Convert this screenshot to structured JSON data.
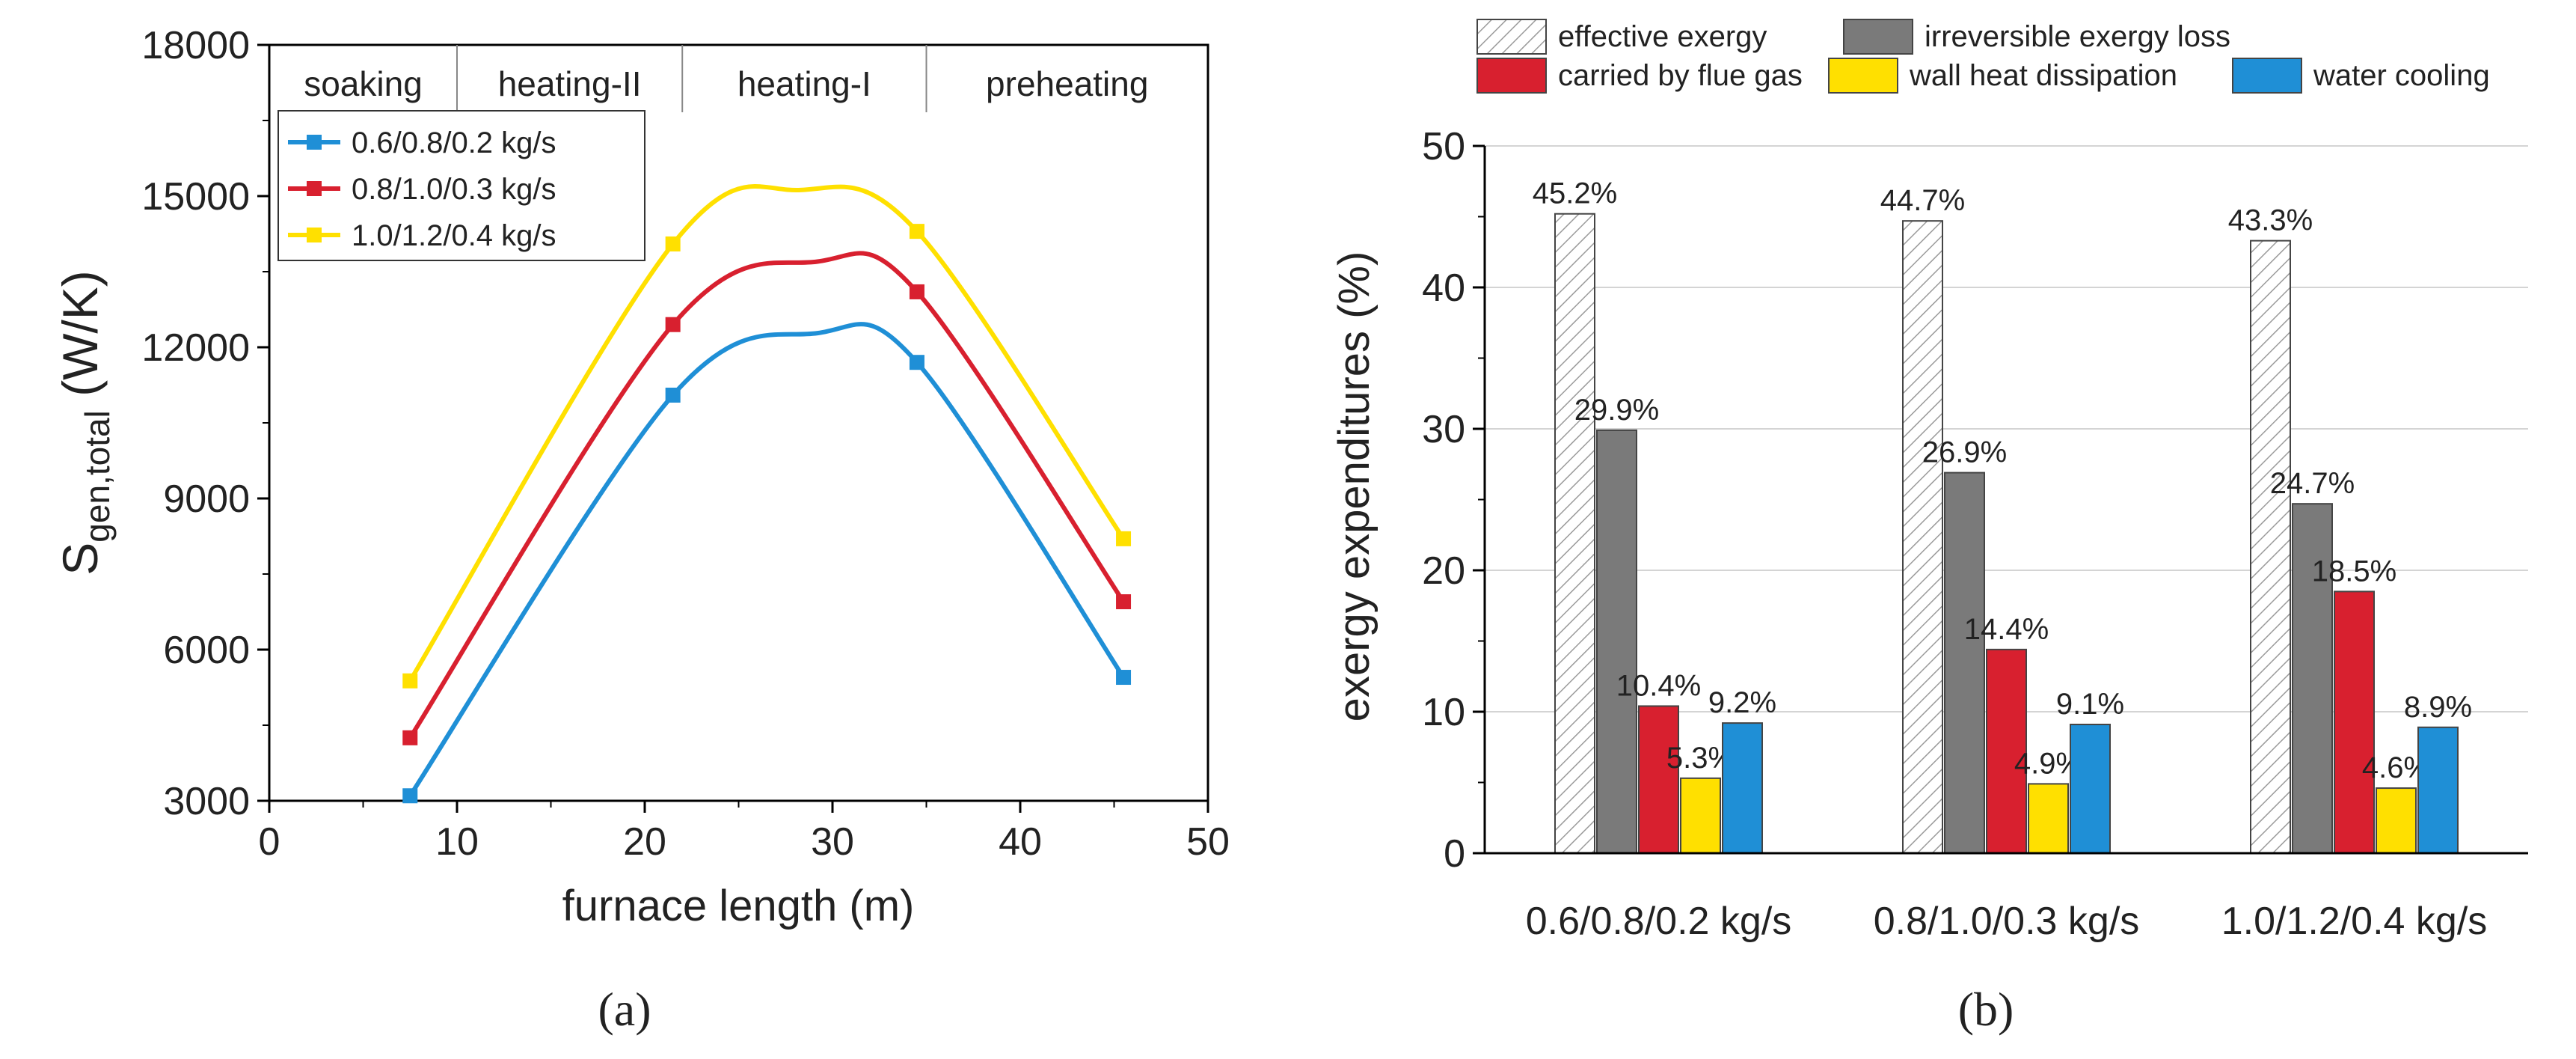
{
  "chart_data": [
    {
      "type": "line",
      "panel": "(a)",
      "xlabel": "furnace length (m)",
      "ylabel_main": "S",
      "ylabel_sub": "gen,total",
      "ylabel_unit": " (W/K)",
      "xlim": [
        0,
        50
      ],
      "ylim": [
        3000,
        18000
      ],
      "xticks": [
        "0",
        "10",
        "20",
        "30",
        "40",
        "50"
      ],
      "yticks": [
        "3000",
        "6000",
        "9000",
        "12000",
        "15000",
        "18000"
      ],
      "regions": [
        {
          "label": "soaking",
          "x_start": 0,
          "x_end": 10
        },
        {
          "label": "heating-II",
          "x_start": 10,
          "x_end": 22
        },
        {
          "label": "heating-I",
          "x_start": 22,
          "x_end": 35
        },
        {
          "label": "preheating",
          "x_start": 35,
          "x_end": 50
        }
      ],
      "x": [
        7.5,
        21.5,
        34.5,
        45.5
      ],
      "series": [
        {
          "name": "0.6/0.8/0.2 kg/s",
          "color": "#1f8fd6",
          "values": [
            3100,
            11050,
            11700,
            5450
          ],
          "peak": [
            29.2,
            12280
          ]
        },
        {
          "name": "0.8/1.0/0.3 kg/s",
          "color": "#d8202f",
          "values": [
            4250,
            12450,
            13100,
            6950
          ],
          "peak": [
            29.2,
            13700
          ]
        },
        {
          "name": "1.0/1.2/0.4 kg/s",
          "color": "#ffe000",
          "values": [
            5380,
            14050,
            14300,
            8200
          ],
          "peak": [
            28.3,
            15120
          ]
        }
      ]
    },
    {
      "type": "bar",
      "panel": "(b)",
      "ylabel": "exergy expenditures (%)",
      "ylim": [
        0,
        50
      ],
      "yticks": [
        "0",
        "10",
        "20",
        "30",
        "40",
        "50"
      ],
      "categories": [
        "0.6/0.8/0.2 kg/s",
        "0.8/1.0/0.3 kg/s",
        "1.0/1.2/0.4 kg/s"
      ],
      "series": [
        {
          "name": "effective exergy",
          "color": "#ffffff",
          "pattern": "hatch",
          "values": [
            45.2,
            44.7,
            43.3
          ],
          "labels": [
            "45.2%",
            "44.7%",
            "43.3%"
          ]
        },
        {
          "name": "irreversible exergy loss",
          "color": "#7a7a7a",
          "values": [
            29.9,
            26.9,
            24.7
          ],
          "labels": [
            "29.9%",
            "26.9%",
            "24.7%"
          ]
        },
        {
          "name": "carried by flue gas",
          "color": "#d8202f",
          "values": [
            10.4,
            14.4,
            18.5
          ],
          "labels": [
            "10.4%",
            "14.4%",
            "18.5%"
          ]
        },
        {
          "name": "wall heat dissipation",
          "color": "#ffe000",
          "values": [
            5.3,
            4.9,
            4.6
          ],
          "labels": [
            "5.3%",
            "4.9%",
            "4.6%"
          ]
        },
        {
          "name": "water cooling",
          "color": "#1f8fd6",
          "values": [
            9.2,
            9.1,
            8.9
          ],
          "labels": [
            "9.2%",
            "9.1%",
            "8.9%"
          ]
        }
      ]
    }
  ]
}
